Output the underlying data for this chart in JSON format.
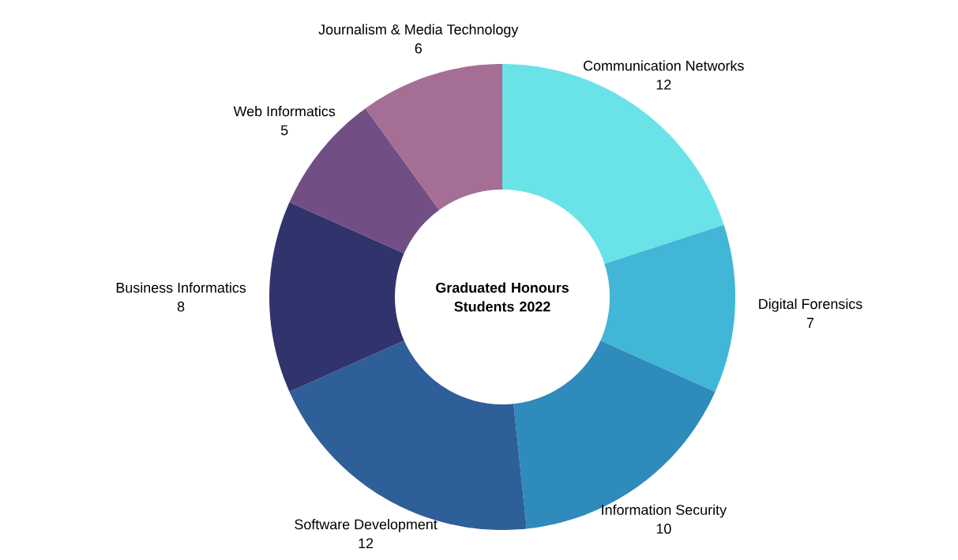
{
  "chart_data": {
    "type": "donut",
    "title": "Graduated Honours Students 2022",
    "categories": [
      "Communication Networks",
      "Digital Forensics",
      "Information Security",
      "Software Development",
      "Business Informatics",
      "Web Informatics",
      "Journalism & Media Technology"
    ],
    "values": [
      12,
      7,
      10,
      12,
      8,
      5,
      6
    ],
    "colors": [
      "#6ae3e8",
      "#42b6d6",
      "#2e8bbb",
      "#2e5f98",
      "#31346c",
      "#714e84",
      "#a46e95"
    ],
    "data_labels": true
  }
}
